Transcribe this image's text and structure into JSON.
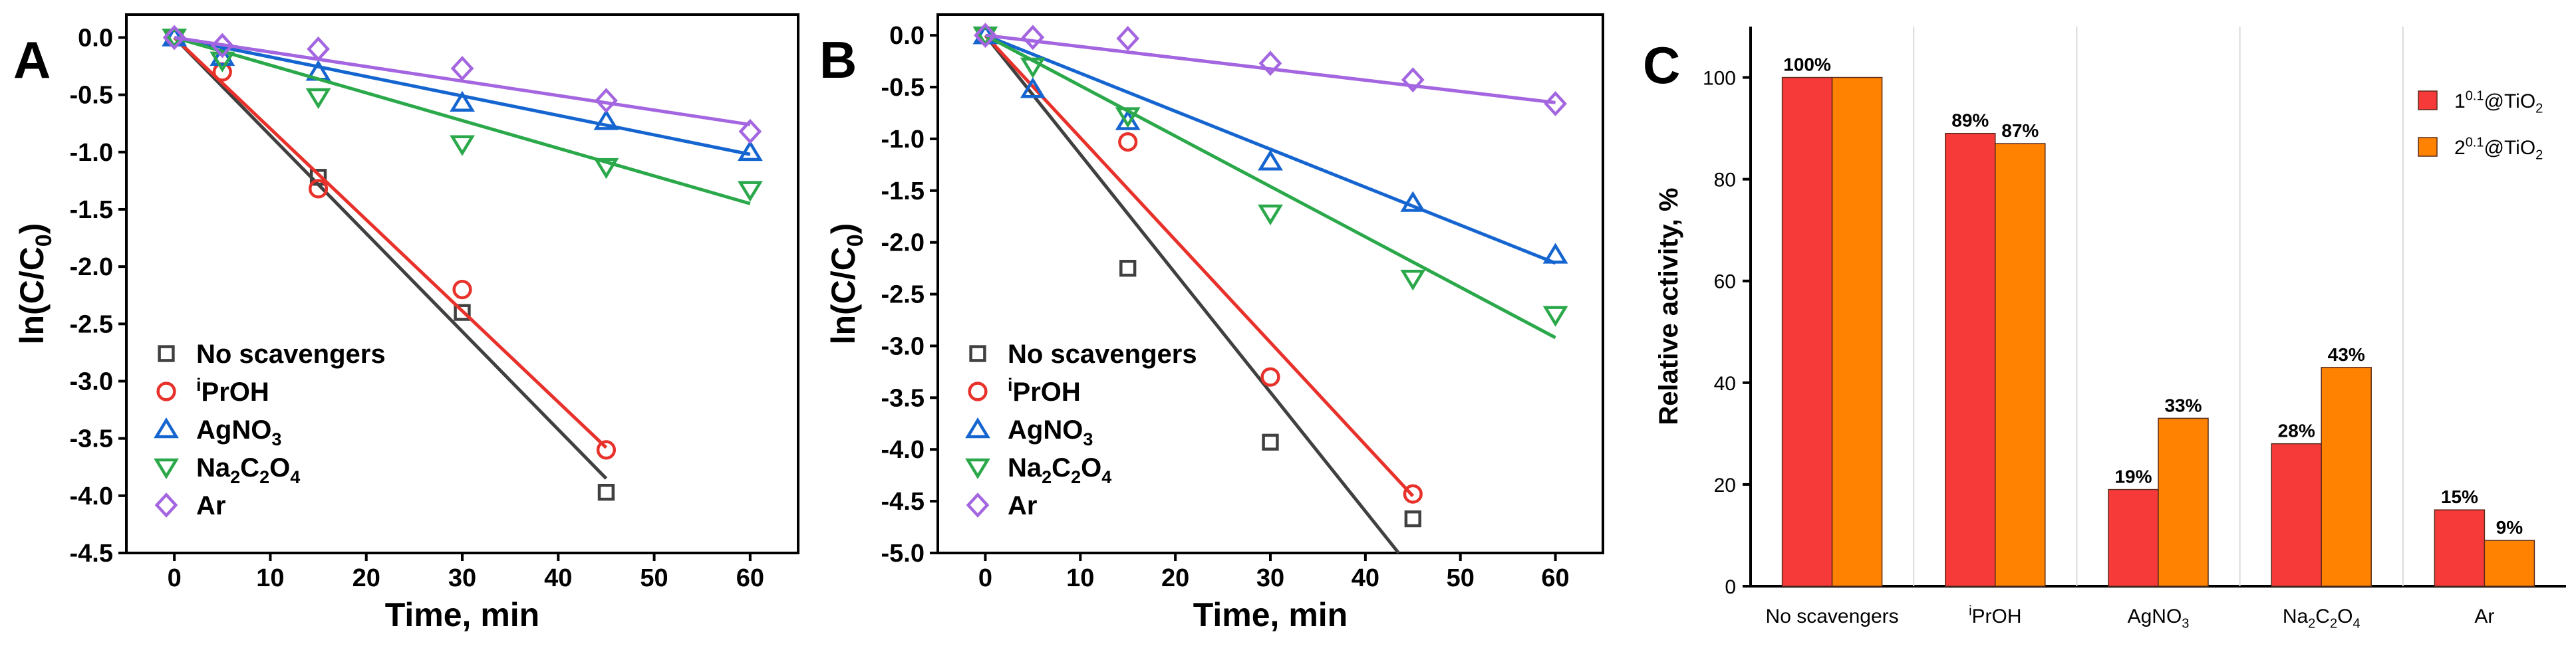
{
  "chart_data": [
    {
      "panel": "A",
      "type": "scatter",
      "xlabel": "Time, min",
      "ylabel": "ln(C/C0)",
      "ylabel_parts": {
        "pre": "ln(C/C",
        "sub": "0",
        "post": ")"
      },
      "xlim": [
        -5,
        65
      ],
      "ylim": [
        -4.5,
        0.2
      ],
      "xticks": [
        0,
        10,
        20,
        30,
        40,
        50,
        60
      ],
      "yticks": [
        0.0,
        -0.5,
        -1.0,
        -1.5,
        -2.0,
        -2.5,
        -3.0,
        -3.5,
        -4.0,
        -4.5
      ],
      "ytick_labels": [
        "0.0",
        "-0.5",
        "-1.0",
        "-1.5",
        "-2.0",
        "-2.5",
        "-3.0",
        "-3.5",
        "-4.0",
        "-4.5"
      ],
      "series": [
        {
          "name": "No scavengers",
          "color": "#404040",
          "marker": "square",
          "x": [
            0,
            15,
            30,
            45
          ],
          "y": [
            0.0,
            -1.22,
            -2.4,
            -3.97
          ],
          "fit": [
            [
              0,
              0.0
            ],
            [
              45,
              -3.85
            ]
          ]
        },
        {
          "name": "iPrOH",
          "color": "#e8312a",
          "marker": "circle",
          "x": [
            0,
            5,
            15,
            30,
            45
          ],
          "y": [
            0.0,
            -0.3,
            -1.32,
            -2.2,
            -3.6
          ],
          "fit": [
            [
              0,
              0.0
            ],
            [
              45,
              -3.58
            ]
          ]
        },
        {
          "name": "AgNO3",
          "color": "#1565d0",
          "marker": "triangle",
          "x": [
            0,
            5,
            15,
            30,
            45,
            60
          ],
          "y": [
            0.0,
            -0.17,
            -0.3,
            -0.57,
            -0.73,
            -1.0
          ],
          "fit": [
            [
              0,
              0.0
            ],
            [
              60,
              -1.02
            ]
          ]
        },
        {
          "name": "Na2C2O4",
          "color": "#2aa84a",
          "marker": "triangle-down",
          "x": [
            0,
            5,
            15,
            30,
            45,
            60
          ],
          "y": [
            0.0,
            -0.2,
            -0.52,
            -0.93,
            -1.13,
            -1.33
          ],
          "fit": [
            [
              0,
              0.0
            ],
            [
              60,
              -1.45
            ]
          ]
        },
        {
          "name": "Ar",
          "color": "#a466e0",
          "marker": "diamond",
          "x": [
            0,
            5,
            15,
            30,
            45,
            60
          ],
          "y": [
            0.0,
            -0.07,
            -0.1,
            -0.27,
            -0.55,
            -0.82
          ],
          "fit": [
            [
              0,
              0.0
            ],
            [
              60,
              -0.76
            ]
          ]
        }
      ]
    },
    {
      "panel": "B",
      "type": "scatter",
      "xlabel": "Time, min",
      "ylabel": "ln(C/C0)",
      "ylabel_parts": {
        "pre": "ln(C/C",
        "sub": "0",
        "post": ")"
      },
      "xlim": [
        -5,
        65
      ],
      "ylim": [
        -5.0,
        0.2
      ],
      "xticks": [
        0,
        10,
        20,
        30,
        40,
        50,
        60
      ],
      "yticks": [
        0.0,
        -0.5,
        -1.0,
        -1.5,
        -2.0,
        -2.5,
        -3.0,
        -3.5,
        -4.0,
        -4.5,
        -5.0
      ],
      "ytick_labels": [
        "0.0",
        "-0.5",
        "-1.0",
        "-1.5",
        "-2.0",
        "-2.5",
        "-3.0",
        "-3.5",
        "-4.0",
        "-4.5",
        "-5.0"
      ],
      "series": [
        {
          "name": "No scavengers",
          "color": "#404040",
          "marker": "square",
          "x": [
            0,
            15,
            30,
            45
          ],
          "y": [
            0.0,
            -2.25,
            -3.93,
            -4.67
          ],
          "fit": [
            [
              0,
              0.0
            ],
            [
              43.5,
              -5.0
            ]
          ]
        },
        {
          "name": "iPrOH",
          "color": "#e8312a",
          "marker": "circle",
          "x": [
            0,
            15,
            30,
            45
          ],
          "y": [
            0.0,
            -1.03,
            -3.3,
            -4.43
          ],
          "fit": [
            [
              0,
              0.0
            ],
            [
              45,
              -4.45
            ]
          ]
        },
        {
          "name": "AgNO3",
          "color": "#1565d0",
          "marker": "triangle",
          "x": [
            0,
            5,
            15,
            30,
            45,
            60
          ],
          "y": [
            0.0,
            -0.52,
            -0.83,
            -1.22,
            -1.62,
            -2.12
          ],
          "fit": [
            [
              0,
              0.0
            ],
            [
              60,
              -2.2
            ]
          ]
        },
        {
          "name": "Na2C2O4",
          "color": "#2aa84a",
          "marker": "triangle-down",
          "x": [
            0,
            5,
            15,
            30,
            45,
            60
          ],
          "y": [
            0.0,
            -0.3,
            -0.78,
            -1.72,
            -2.35,
            -2.7
          ],
          "fit": [
            [
              0,
              0.0
            ],
            [
              60,
              -2.92
            ]
          ]
        },
        {
          "name": "Ar",
          "color": "#a466e0",
          "marker": "diamond",
          "x": [
            0,
            5,
            15,
            30,
            45,
            60
          ],
          "y": [
            0.0,
            -0.02,
            -0.03,
            -0.27,
            -0.43,
            -0.66
          ],
          "fit": [
            [
              0,
              0.0
            ],
            [
              60,
              -0.65
            ]
          ]
        }
      ]
    },
    {
      "panel": "C",
      "type": "bar",
      "ylabel": "Relative activity, %",
      "ylim": [
        0,
        110
      ],
      "yticks": [
        0,
        20,
        40,
        60,
        80,
        100
      ],
      "categories": [
        "No scavengers",
        "iPrOH",
        "AgNO3",
        "Na2C2O4",
        "Ar"
      ],
      "series": [
        {
          "name": "1^0.1@TiO2",
          "color": "#f63a3a",
          "values": [
            100,
            89,
            19,
            28,
            15
          ],
          "labels": [
            "100%",
            "89%",
            "19%",
            "28%",
            "15%"
          ]
        },
        {
          "name": "2^0.1@TiO2",
          "color": "#ff8200",
          "values": [
            100,
            87,
            33,
            43,
            9
          ],
          "labels": [
            "",
            "87%",
            "33%",
            "43%",
            "9%"
          ]
        }
      ],
      "legend": "top-right"
    }
  ]
}
